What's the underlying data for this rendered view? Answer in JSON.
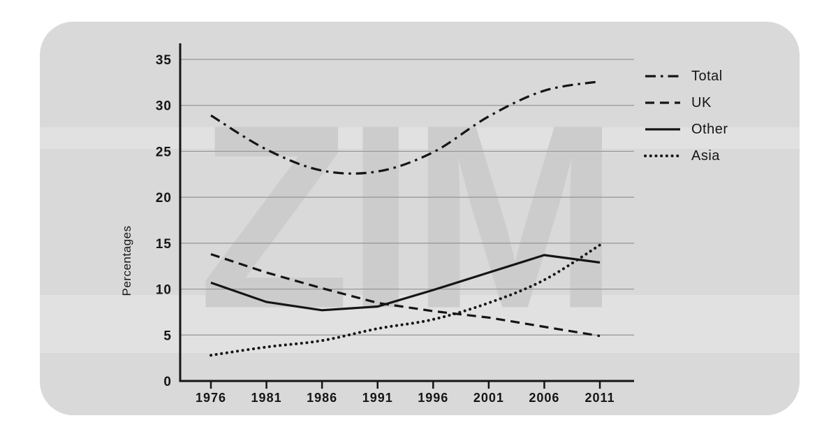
{
  "watermark": "ZIM",
  "colors": {
    "card_bg": "#d9d9d9",
    "watermark": "#cccccc",
    "line": "#151515",
    "grid": "#949494",
    "text": "#151515"
  },
  "chart_data": {
    "type": "line",
    "title": "",
    "xlabel": "",
    "ylabel": "Percentages",
    "ylim": [
      0,
      35
    ],
    "yticks": [
      0,
      5,
      10,
      15,
      20,
      25,
      30,
      35
    ],
    "x": [
      1976,
      1981,
      1986,
      1991,
      1996,
      2001,
      2006,
      2011
    ],
    "grid": true,
    "legend_position": "right",
    "series": [
      {
        "name": "Total",
        "style": "dashdot",
        "smooth": true,
        "values": [
          28.9,
          25.2,
          22.9,
          22.8,
          24.9,
          28.8,
          31.6,
          32.6
        ]
      },
      {
        "name": "UK",
        "style": "dashed",
        "smooth": false,
        "values": [
          13.8,
          11.8,
          10.1,
          8.5,
          7.6,
          6.9,
          5.9,
          4.9
        ]
      },
      {
        "name": "Other",
        "style": "solid",
        "smooth": false,
        "values": [
          10.7,
          8.6,
          7.7,
          8.1,
          9.9,
          11.8,
          13.7,
          12.9
        ]
      },
      {
        "name": "Asia",
        "style": "dotted",
        "smooth": true,
        "values": [
          2.8,
          3.7,
          4.4,
          5.7,
          6.7,
          8.5,
          11.0,
          14.8
        ]
      }
    ]
  }
}
